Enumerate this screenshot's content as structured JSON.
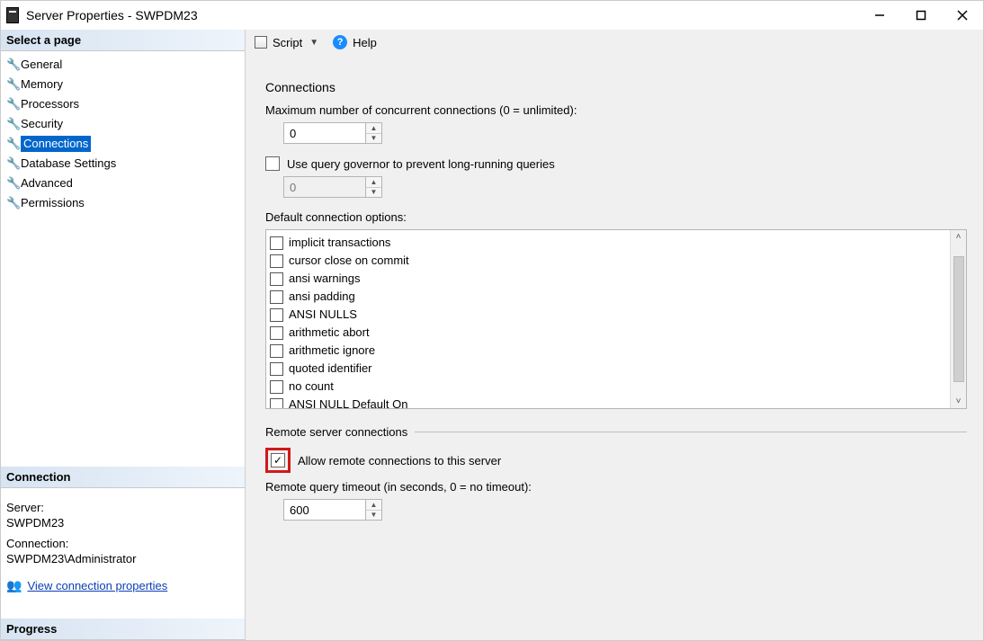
{
  "window": {
    "title": "Server Properties - SWPDM23"
  },
  "sidebar": {
    "header": "Select a page",
    "pages": [
      {
        "label": "General",
        "selected": false
      },
      {
        "label": "Memory",
        "selected": false
      },
      {
        "label": "Processors",
        "selected": false
      },
      {
        "label": "Security",
        "selected": false
      },
      {
        "label": "Connections",
        "selected": true
      },
      {
        "label": "Database Settings",
        "selected": false
      },
      {
        "label": "Advanced",
        "selected": false
      },
      {
        "label": "Permissions",
        "selected": false
      }
    ],
    "connection_header": "Connection",
    "server_label": "Server:",
    "server_value": "SWPDM23",
    "connection_label": "Connection:",
    "connection_value": "SWPDM23\\Administrator",
    "view_props_link": "View connection properties",
    "progress_header": "Progress"
  },
  "toolbar": {
    "script_label": "Script",
    "help_label": "Help"
  },
  "connections": {
    "section_title": "Connections",
    "max_label": "Maximum number of concurrent connections (0 = unlimited):",
    "max_value": "0",
    "governor_label": "Use query governor to prevent long-running queries",
    "governor_checked": false,
    "governor_value": "0",
    "default_options_label": "Default connection options:",
    "options": [
      "implicit transactions",
      "cursor close on commit",
      "ansi warnings",
      "ansi padding",
      "ANSI NULLS",
      "arithmetic abort",
      "arithmetic ignore",
      "quoted identifier",
      "no count",
      "ANSI NULL Default On"
    ],
    "remote_section_title": "Remote server connections",
    "allow_remote_label": "Allow remote connections to this server",
    "allow_remote_checked": true,
    "remote_timeout_label": "Remote query timeout (in seconds, 0 = no timeout):",
    "remote_timeout_value": "600"
  },
  "colors": {
    "highlight_bg": "#0066cc",
    "link": "#0a3fb5",
    "red_box": "#d11919",
    "pane_bg": "#f0f0f0"
  }
}
